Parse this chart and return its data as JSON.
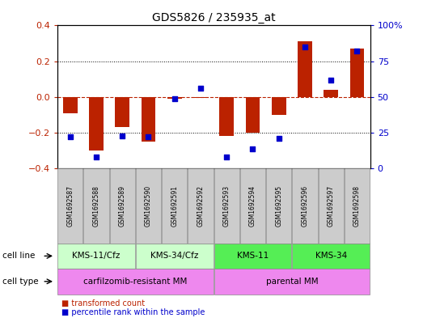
{
  "title": "GDS5826 / 235935_at",
  "samples": [
    "GSM1692587",
    "GSM1692588",
    "GSM1692589",
    "GSM1692590",
    "GSM1692591",
    "GSM1692592",
    "GSM1692593",
    "GSM1692594",
    "GSM1692595",
    "GSM1692596",
    "GSM1692597",
    "GSM1692598"
  ],
  "transformed_count": [
    -0.09,
    -0.3,
    -0.17,
    -0.25,
    -0.01,
    -0.005,
    -0.22,
    -0.2,
    -0.1,
    0.31,
    0.04,
    0.27
  ],
  "percentile_rank": [
    22,
    8,
    23,
    22,
    49,
    56,
    8,
    14,
    21,
    85,
    62,
    82
  ],
  "bar_color": "#bb2200",
  "dot_color": "#0000cc",
  "ylim_left": [
    -0.4,
    0.4
  ],
  "ylim_right": [
    0,
    100
  ],
  "yticks_left": [
    -0.4,
    -0.2,
    0.0,
    0.2,
    0.4
  ],
  "yticks_right": [
    0,
    25,
    50,
    75,
    100
  ],
  "ytick_labels_right": [
    "0",
    "25",
    "50",
    "75",
    "100%"
  ],
  "cell_line_groups": [
    {
      "label": "KMS-11/Cfz",
      "start": 0,
      "end": 2,
      "color": "#ccffcc"
    },
    {
      "label": "KMS-34/Cfz",
      "start": 3,
      "end": 5,
      "color": "#ccffcc"
    },
    {
      "label": "KMS-11",
      "start": 6,
      "end": 8,
      "color": "#44ee44"
    },
    {
      "label": "KMS-34",
      "start": 9,
      "end": 11,
      "color": "#44ee44"
    }
  ],
  "cell_type_groups": [
    {
      "label": "carfilzomib-resistant MM",
      "start": 0,
      "end": 5
    },
    {
      "label": "parental MM",
      "start": 6,
      "end": 11
    }
  ],
  "cell_type_color": "#ee88ee",
  "legend_items": [
    {
      "label": "transformed count",
      "color": "#bb2200"
    },
    {
      "label": "percentile rank within the sample",
      "color": "#0000cc"
    }
  ],
  "cell_line_label": "cell line",
  "cell_type_label": "cell type",
  "sample_box_color": "#cccccc",
  "background_color": "#ffffff",
  "plot_bg_color": "#ffffff"
}
